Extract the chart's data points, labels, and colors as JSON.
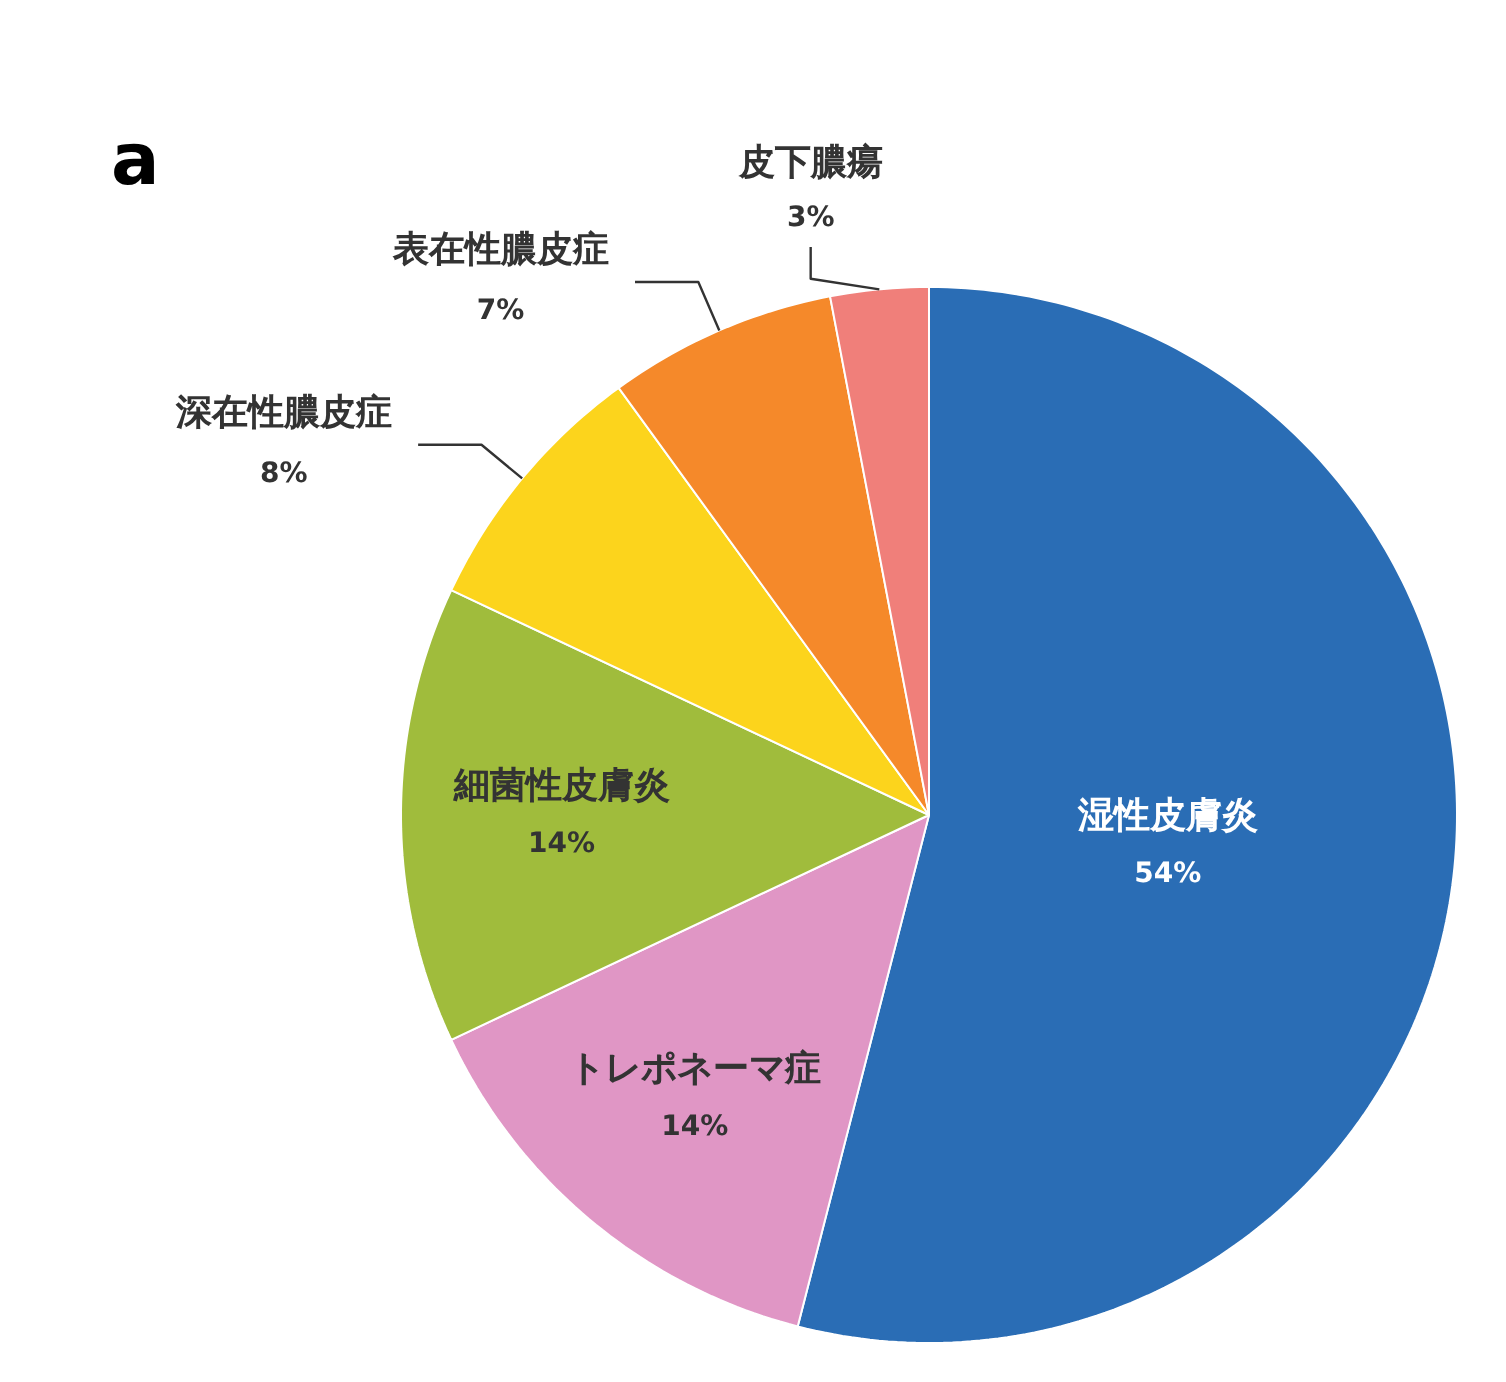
{
  "chart_data": {
    "type": "pie",
    "categories": [
      "湿性皮膚炎",
      "トレポネーマ症",
      "細菌性皮膚炎",
      "深在性膿皮症",
      "表在性膿皮症",
      "皮下膿瘍"
    ],
    "values": [
      54,
      14,
      14,
      8,
      7,
      3
    ],
    "colors": [
      "#2a6db5",
      "#e096c5",
      "#a0bc3c",
      "#fcd41c",
      "#f5892a",
      "#f07f7a"
    ],
    "value_labels": [
      "54%",
      "14%",
      "14%",
      "8%",
      "7%",
      "3%"
    ],
    "annotations": [
      "a"
    ]
  }
}
